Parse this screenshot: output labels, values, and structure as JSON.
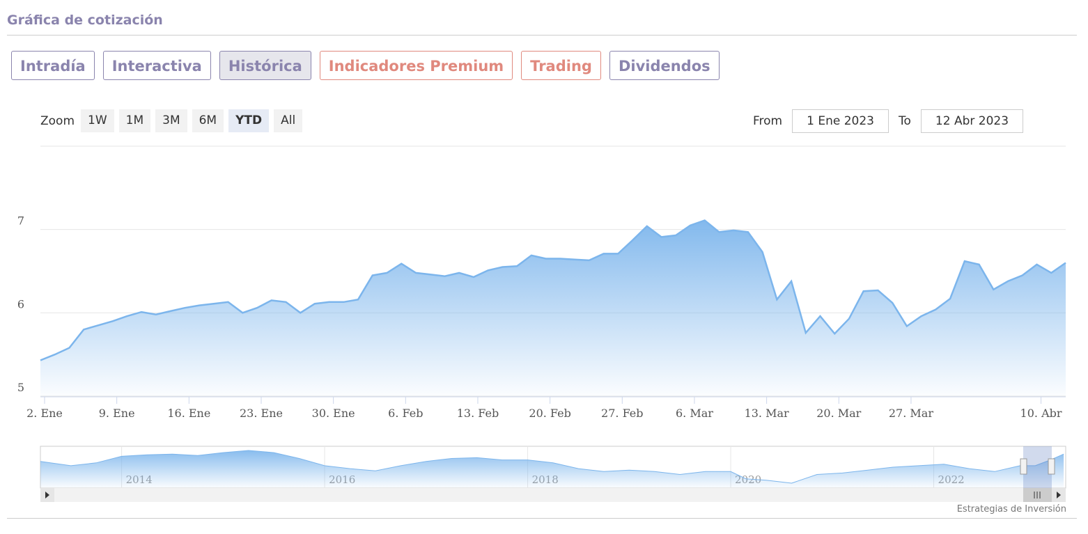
{
  "header": {
    "title": "Gráfica de cotización"
  },
  "tabs": [
    {
      "label": "Intradía",
      "color": "#8a84ad"
    },
    {
      "label": "Interactiva",
      "color": "#8a84ad"
    },
    {
      "label": "Histórica",
      "color": "#8a84ad",
      "active": true
    },
    {
      "label": "Indicadores Premium",
      "color": "#e0897e"
    },
    {
      "label": "Trading",
      "color": "#e0897e"
    },
    {
      "label": "Dividendos",
      "color": "#8a84ad"
    }
  ],
  "zoom": {
    "label": "Zoom",
    "buttons": [
      "1W",
      "1M",
      "3M",
      "6M",
      "YTD",
      "All"
    ],
    "active": 4
  },
  "range": {
    "from_label": "From",
    "from": "1 Ene 2023",
    "to_label": "To",
    "to": "12 Abr 2023"
  },
  "chart_data": {
    "type": "area",
    "color": "#7cb5ec",
    "categories": [
      "2. Ene",
      null,
      null,
      null,
      null,
      "9. Ene",
      null,
      null,
      null,
      null,
      "16. Ene",
      null,
      null,
      null,
      null,
      "23. Ene",
      null,
      null,
      null,
      null,
      "30. Ene",
      null,
      null,
      null,
      null,
      "6. Feb",
      null,
      null,
      null,
      null,
      "13. Feb",
      null,
      null,
      null,
      null,
      "20. Feb",
      null,
      null,
      null,
      null,
      "27. Feb",
      null,
      null,
      null,
      null,
      "6. Mar",
      null,
      null,
      null,
      null,
      "13. Mar",
      null,
      null,
      null,
      null,
      "20. Mar",
      null,
      null,
      null,
      null,
      "27. Mar",
      null,
      null,
      null,
      null,
      null,
      null,
      null,
      null,
      "10. Abr",
      null,
      null
    ],
    "values": [
      5.43,
      5.5,
      5.58,
      5.8,
      5.85,
      5.9,
      5.96,
      6.01,
      5.98,
      6.02,
      6.06,
      6.09,
      6.11,
      6.13,
      6.0,
      6.06,
      6.15,
      6.13,
      6.0,
      6.11,
      6.13,
      6.13,
      6.16,
      6.45,
      6.48,
      6.59,
      6.48,
      6.46,
      6.44,
      6.48,
      6.43,
      6.51,
      6.55,
      6.56,
      6.69,
      6.65,
      6.65,
      6.64,
      6.63,
      6.71,
      6.71,
      6.87,
      7.04,
      6.91,
      6.93,
      7.05,
      7.11,
      6.97,
      6.99,
      6.97,
      6.73,
      6.16,
      6.38,
      5.76,
      5.96,
      5.75,
      5.93,
      6.26,
      6.27,
      6.12,
      5.84,
      5.96,
      6.04,
      6.17,
      6.62,
      6.58,
      6.28,
      6.38,
      6.45,
      6.58,
      6.48,
      6.6
    ],
    "ylim": [
      5,
      8
    ],
    "yticks": [
      5,
      6,
      7
    ],
    "grid": true
  },
  "navigator": {
    "color": "#7cb5ec",
    "x": [
      2013.2,
      2013.5,
      2013.75,
      2014,
      2014.25,
      2014.5,
      2014.75,
      2015,
      2015.25,
      2015.5,
      2015.75,
      2016,
      2016.25,
      2016.5,
      2016.75,
      2017,
      2017.25,
      2017.5,
      2017.75,
      2018,
      2018.25,
      2018.5,
      2018.75,
      2019,
      2019.25,
      2019.5,
      2019.75,
      2020,
      2020.15,
      2020.35,
      2020.6,
      2020.85,
      2021.1,
      2021.35,
      2021.6,
      2021.85,
      2022.1,
      2022.35,
      2022.6,
      2022.85,
      2023.0,
      2023.15,
      2023.28
    ],
    "values": [
      5.64,
      5.16,
      5.48,
      6.2,
      6.36,
      6.44,
      6.28,
      6.6,
      6.84,
      6.6,
      5.96,
      5.16,
      4.84,
      4.6,
      5.16,
      5.64,
      5.96,
      6.04,
      5.8,
      5.8,
      5.48,
      4.84,
      4.52,
      4.68,
      4.52,
      4.2,
      4.52,
      4.52,
      3.72,
      3.56,
      3.24,
      4.2,
      4.36,
      4.68,
      5.0,
      5.16,
      5.32,
      4.84,
      4.52,
      5.16,
      5.16,
      5.8,
      6.44
    ],
    "xlim": [
      2013.2,
      2023.3
    ],
    "xticks": [
      2014,
      2016,
      2018,
      2020,
      2022
    ]
  },
  "credit": "Estrategias de Inversión"
}
